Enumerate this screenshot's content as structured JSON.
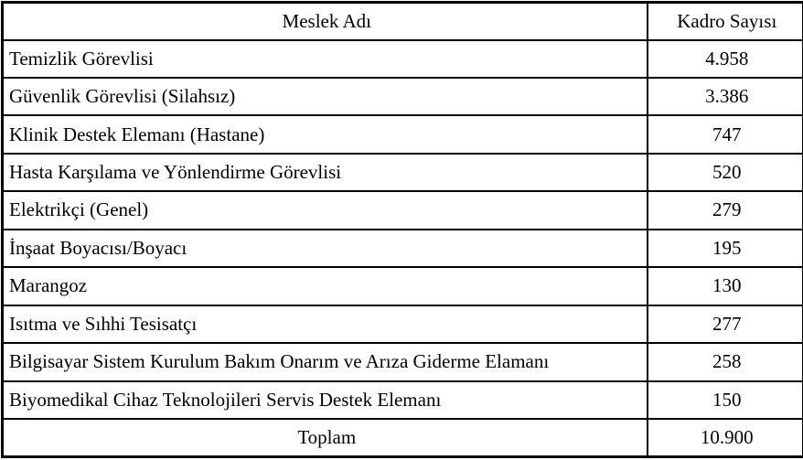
{
  "table": {
    "columns": {
      "meslek": "Meslek Adı",
      "kadro": "Kadro Sayısı"
    },
    "rows": [
      {
        "meslek": "Temizlik Görevlisi",
        "kadro": "4.958"
      },
      {
        "meslek": "Güvenlik Görevlisi (Silahsız)",
        "kadro": "3.386"
      },
      {
        "meslek": "Klinik Destek Elemanı (Hastane)",
        "kadro": "747"
      },
      {
        "meslek": "Hasta Karşılama ve Yönlendirme Görevlisi",
        "kadro": "520"
      },
      {
        "meslek": "Elektrikçi (Genel)",
        "kadro": "279"
      },
      {
        "meslek": "İnşaat Boyacısı/Boyacı",
        "kadro": "195"
      },
      {
        "meslek": "Marangoz",
        "kadro": "130"
      },
      {
        "meslek": "Isıtma ve Sıhhi Tesisatçı",
        "kadro": "277"
      },
      {
        "meslek": "Bilgisayar Sistem Kurulum Bakım Onarım ve Arıza Giderme Elamanı",
        "kadro": "258"
      },
      {
        "meslek": "Biyomedikal Cihaz Teknolojileri Servis Destek Elemanı",
        "kadro": "150"
      }
    ],
    "total": {
      "label": "Toplam",
      "value": "10.900"
    },
    "colors": {
      "border": "#000000",
      "background": "#ffffff",
      "text": "#000000"
    }
  }
}
